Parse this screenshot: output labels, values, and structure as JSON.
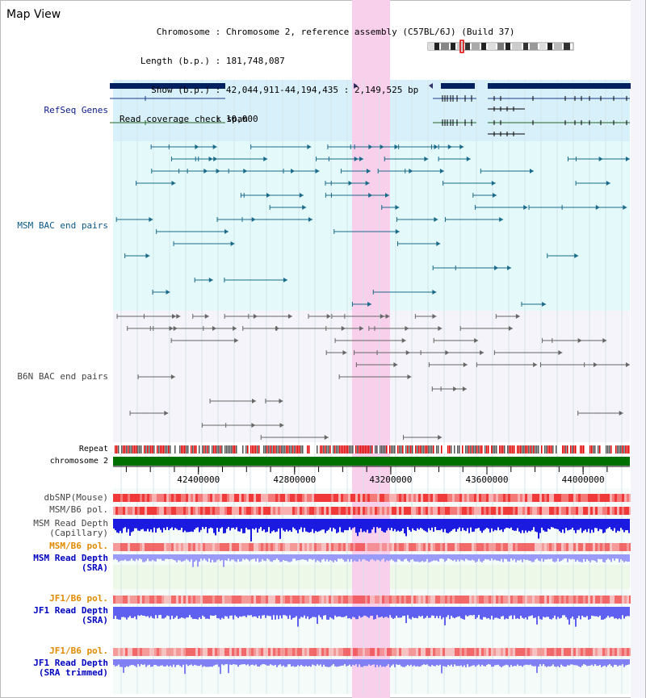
{
  "view": {
    "title": "Map View",
    "info": [
      {
        "key": "Chromosome",
        "value": "Chromosome 2, reference assembly (C57BL/6J) (Build 37)"
      },
      {
        "key": "Length (b.p.)",
        "value": "181,748,087"
      },
      {
        "key": "Show (b.p.)",
        "value": "42,044,911-44,194,435 : 2,149,525 bp"
      },
      {
        "key": "Read coverage check span",
        "value": "10,000"
      }
    ]
  },
  "tracks": {
    "refseq": {
      "label": "RefSeq Genes",
      "color": "#0a1a8a"
    },
    "msm_bac": {
      "label": "MSM BAC end pairs",
      "color": "#0a5a8a"
    },
    "b6n_bac": {
      "label": "B6N BAC end pairs",
      "color": "#444444"
    },
    "repeat": {
      "label": "Repeat"
    },
    "chromosome": {
      "label": "chromosome 2"
    },
    "dbsnp": {
      "label": "dbSNP(Mouse)"
    },
    "msm_b6_pol": {
      "label": "MSM/B6 pol."
    },
    "msm_depth_cap": {
      "label": "MSM Read Depth",
      "sublabel": "(Capillary)"
    },
    "msm_b6_pol2": {
      "label": "MSM/B6 pol.",
      "color": "#e08a00"
    },
    "msm_depth_sra": {
      "label": "MSM Read Depth",
      "sublabel": "(SRA)",
      "color": "#0000c0"
    },
    "jf1_pol": {
      "label": "JF1/B6 pol.",
      "color": "#e08a00"
    },
    "jf1_depth_sra": {
      "label": "JF1 Read Depth",
      "sublabel": "(SRA)",
      "color": "#0000c0"
    },
    "jf1_pol2": {
      "label": "JF1/B6 pol.",
      "color": "#e08a00"
    },
    "jf1_depth_trim": {
      "label": "JF1 Read Depth",
      "sublabel": "(SRA trimmed)",
      "color": "#0000c0"
    }
  },
  "axis": {
    "ticks": [
      42400000,
      42800000,
      43200000,
      43600000,
      44000000
    ],
    "tick_labels": [
      "42400000",
      "42800000",
      "43200000",
      "43600000",
      "44000000"
    ],
    "range": [
      42044911,
      44194435
    ]
  },
  "colors": {
    "highlight": "#f8d0ec",
    "refseq_bg": "#d8f0fa",
    "msm_bg": "#e4fafa",
    "b6n_bg": "#f4f4fa",
    "chrom_green": "#007000",
    "snp_red": "#f04040",
    "depth_blue": "#2020e0"
  }
}
